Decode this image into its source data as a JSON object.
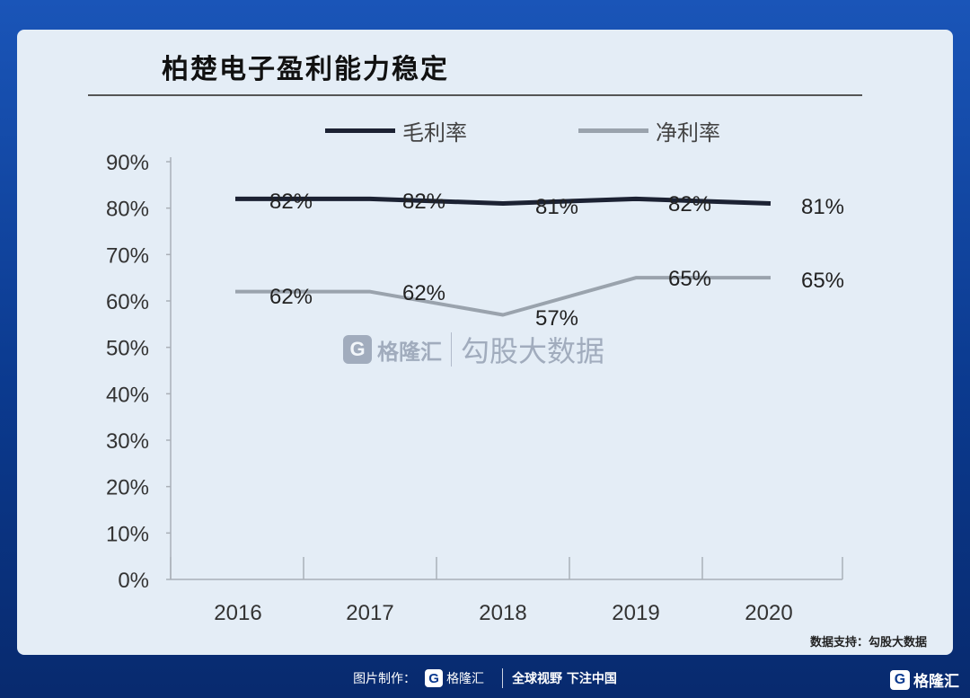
{
  "chart_data": {
    "type": "line",
    "title": "柏楚电子盈利能力稳定",
    "categories": [
      "2016",
      "2017",
      "2018",
      "2019",
      "2020"
    ],
    "yticks": [
      "0%",
      "10%",
      "20%",
      "30%",
      "40%",
      "50%",
      "60%",
      "70%",
      "80%",
      "90%"
    ],
    "ylim": [
      0,
      90
    ],
    "series": [
      {
        "name": "毛利率",
        "values": [
          82,
          82,
          81,
          82,
          81
        ],
        "labels": [
          "82%",
          "82%",
          "81%",
          "82%",
          "81%"
        ],
        "color": "#1c2233"
      },
      {
        "name": "净利率",
        "values": [
          62,
          62,
          57,
          65,
          65
        ],
        "labels": [
          "62%",
          "62%",
          "57%",
          "65%",
          "65%"
        ],
        "color": "#9aa3ad"
      }
    ],
    "legend_position": "top"
  },
  "watermark": {
    "brand": "格隆汇",
    "sub": "勾股大数据",
    "logo_letter": "G"
  },
  "source": "数据支持：勾股大数据",
  "footer": {
    "prefix": "图片制作：",
    "brand": "格隆汇",
    "slogan": "全球视野 下注中国",
    "logo_letter": "G"
  },
  "corner_brand": "格隆汇"
}
